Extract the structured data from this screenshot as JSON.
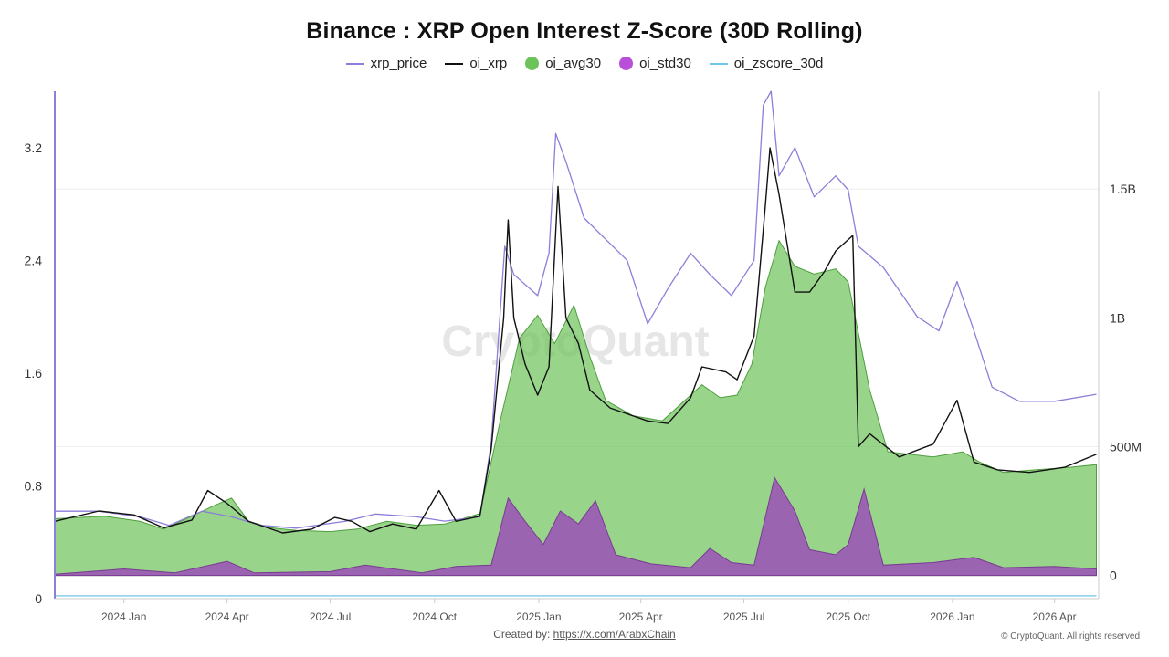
{
  "title": "Binance : XRP Open Interest Z-Score (30D Rolling)",
  "legend": [
    {
      "label": "xrp_price",
      "kind": "line",
      "color": "#8b7fd9"
    },
    {
      "label": "oi_xrp",
      "kind": "line",
      "color": "#111111"
    },
    {
      "label": "oi_avg30",
      "kind": "dot",
      "color": "#6cc35a"
    },
    {
      "label": "oi_std30",
      "kind": "dot",
      "color": "#b84fd8"
    },
    {
      "label": "oi_zscore_30d",
      "kind": "line",
      "color": "#6ec6e8"
    }
  ],
  "watermark": "CryptoQuant",
  "footer": {
    "created_by_label": "Created by:",
    "created_by_link": "https://x.com/ArabxChain",
    "copyright": "© CryptoQuant. All rights reserved"
  },
  "chart_data": {
    "type": "area",
    "x_ticks": [
      "2024 Jan",
      "2024 Apr",
      "2024 Jul",
      "2024 Oct",
      "2025 Jan",
      "2025 Apr",
      "2025 Jul",
      "2025 Oct",
      "2026 Jan",
      "2026 Apr"
    ],
    "x_range": [
      "2023-11-01",
      "2026-05-10"
    ],
    "left_axis": {
      "ticks": [
        "0",
        "0.8",
        "1.6",
        "2.4",
        "3.2"
      ],
      "values": [
        0,
        0.8,
        1.6,
        2.4,
        3.2
      ],
      "range": [
        0,
        3.6
      ]
    },
    "right_axis": {
      "ticks": [
        "0",
        "500M",
        "1B",
        "1.5B"
      ],
      "values": [
        0,
        500000000,
        1000000000,
        1500000000
      ],
      "range": [
        -90000000,
        1880000000
      ]
    },
    "grid": true,
    "legend_position": "top-center",
    "series": [
      {
        "name": "oi_avg30",
        "axis": "right",
        "style": "area",
        "color": "#6cc35a",
        "points": [
          [
            "2023-11-01",
            220000000
          ],
          [
            "2023-12-15",
            230000000
          ],
          [
            "2024-01-15",
            210000000
          ],
          [
            "2024-02-05",
            180000000
          ],
          [
            "2024-03-01",
            230000000
          ],
          [
            "2024-03-20",
            270000000
          ],
          [
            "2024-04-05",
            300000000
          ],
          [
            "2024-04-20",
            210000000
          ],
          [
            "2024-05-10",
            185000000
          ],
          [
            "2024-06-01",
            175000000
          ],
          [
            "2024-07-01",
            170000000
          ],
          [
            "2024-07-25",
            180000000
          ],
          [
            "2024-08-20",
            210000000
          ],
          [
            "2024-09-15",
            195000000
          ],
          [
            "2024-10-10",
            200000000
          ],
          [
            "2024-11-10",
            240000000
          ],
          [
            "2024-11-28",
            600000000
          ],
          [
            "2024-12-15",
            920000000
          ],
          [
            "2024-12-31",
            1010000000
          ],
          [
            "2025-01-15",
            900000000
          ],
          [
            "2025-02-01",
            1050000000
          ],
          [
            "2025-02-15",
            850000000
          ],
          [
            "2025-03-01",
            680000000
          ],
          [
            "2025-03-25",
            620000000
          ],
          [
            "2025-04-20",
            600000000
          ],
          [
            "2025-05-10",
            680000000
          ],
          [
            "2025-05-25",
            740000000
          ],
          [
            "2025-06-10",
            690000000
          ],
          [
            "2025-06-25",
            700000000
          ],
          [
            "2025-07-08",
            820000000
          ],
          [
            "2025-07-20",
            1120000000
          ],
          [
            "2025-08-01",
            1300000000
          ],
          [
            "2025-08-15",
            1200000000
          ],
          [
            "2025-09-01",
            1170000000
          ],
          [
            "2025-09-20",
            1190000000
          ],
          [
            "2025-10-01",
            1140000000
          ],
          [
            "2025-10-20",
            720000000
          ],
          [
            "2025-11-05",
            480000000
          ],
          [
            "2025-12-15",
            460000000
          ],
          [
            "2026-01-10",
            480000000
          ],
          [
            "2026-01-25",
            440000000
          ],
          [
            "2026-02-15",
            400000000
          ],
          [
            "2026-03-15",
            410000000
          ],
          [
            "2026-04-15",
            420000000
          ],
          [
            "2026-05-08",
            430000000
          ]
        ]
      },
      {
        "name": "oi_std30",
        "axis": "right",
        "style": "area",
        "color": "#9b58b5",
        "points": [
          [
            "2023-11-01",
            5000000
          ],
          [
            "2024-01-01",
            25000000
          ],
          [
            "2024-02-15",
            10000000
          ],
          [
            "2024-04-01",
            55000000
          ],
          [
            "2024-04-25",
            10000000
          ],
          [
            "2024-07-01",
            15000000
          ],
          [
            "2024-08-01",
            40000000
          ],
          [
            "2024-09-20",
            10000000
          ],
          [
            "2024-10-20",
            35000000
          ],
          [
            "2024-11-20",
            40000000
          ],
          [
            "2024-12-05",
            300000000
          ],
          [
            "2024-12-20",
            210000000
          ],
          [
            "2025-01-05",
            120000000
          ],
          [
            "2025-01-20",
            250000000
          ],
          [
            "2025-02-05",
            200000000
          ],
          [
            "2025-02-20",
            290000000
          ],
          [
            "2025-03-10",
            80000000
          ],
          [
            "2025-04-10",
            45000000
          ],
          [
            "2025-05-15",
            30000000
          ],
          [
            "2025-06-01",
            105000000
          ],
          [
            "2025-06-20",
            50000000
          ],
          [
            "2025-07-10",
            40000000
          ],
          [
            "2025-07-28",
            380000000
          ],
          [
            "2025-08-15",
            250000000
          ],
          [
            "2025-08-28",
            100000000
          ],
          [
            "2025-09-20",
            80000000
          ],
          [
            "2025-10-01",
            120000000
          ],
          [
            "2025-10-15",
            335000000
          ],
          [
            "2025-11-01",
            40000000
          ],
          [
            "2025-12-15",
            50000000
          ],
          [
            "2026-01-20",
            70000000
          ],
          [
            "2026-02-15",
            30000000
          ],
          [
            "2026-04-01",
            35000000
          ],
          [
            "2026-05-08",
            25000000
          ]
        ]
      },
      {
        "name": "oi_xrp",
        "axis": "right",
        "style": "line",
        "color": "#111111",
        "points": [
          [
            "2023-11-01",
            210000000
          ],
          [
            "2023-12-10",
            250000000
          ],
          [
            "2024-01-10",
            235000000
          ],
          [
            "2024-02-05",
            185000000
          ],
          [
            "2024-03-01",
            215000000
          ],
          [
            "2024-03-15",
            330000000
          ],
          [
            "2024-04-01",
            280000000
          ],
          [
            "2024-04-20",
            210000000
          ],
          [
            "2024-05-20",
            165000000
          ],
          [
            "2024-06-15",
            180000000
          ],
          [
            "2024-07-05",
            225000000
          ],
          [
            "2024-07-20",
            210000000
          ],
          [
            "2024-08-05",
            170000000
          ],
          [
            "2024-08-25",
            200000000
          ],
          [
            "2024-09-15",
            180000000
          ],
          [
            "2024-10-05",
            330000000
          ],
          [
            "2024-10-20",
            210000000
          ],
          [
            "2024-11-10",
            230000000
          ],
          [
            "2024-11-20",
            490000000
          ],
          [
            "2024-12-01",
            1000000000
          ],
          [
            "2024-12-05",
            1380000000
          ],
          [
            "2024-12-10",
            1000000000
          ],
          [
            "2024-12-20",
            820000000
          ],
          [
            "2024-12-31",
            700000000
          ],
          [
            "2025-01-10",
            810000000
          ],
          [
            "2025-01-18",
            1510000000
          ],
          [
            "2025-01-25",
            1000000000
          ],
          [
            "2025-02-05",
            900000000
          ],
          [
            "2025-02-15",
            720000000
          ],
          [
            "2025-03-05",
            650000000
          ],
          [
            "2025-04-07",
            600000000
          ],
          [
            "2025-04-25",
            590000000
          ],
          [
            "2025-05-15",
            690000000
          ],
          [
            "2025-05-25",
            810000000
          ],
          [
            "2025-06-15",
            790000000
          ],
          [
            "2025-06-25",
            760000000
          ],
          [
            "2025-07-10",
            930000000
          ],
          [
            "2025-07-20",
            1440000000
          ],
          [
            "2025-07-24",
            1660000000
          ],
          [
            "2025-08-01",
            1480000000
          ],
          [
            "2025-08-15",
            1100000000
          ],
          [
            "2025-08-28",
            1100000000
          ],
          [
            "2025-09-10",
            1180000000
          ],
          [
            "2025-09-20",
            1260000000
          ],
          [
            "2025-10-05",
            1320000000
          ],
          [
            "2025-10-10",
            500000000
          ],
          [
            "2025-10-20",
            550000000
          ],
          [
            "2025-11-15",
            460000000
          ],
          [
            "2025-12-15",
            510000000
          ],
          [
            "2026-01-05",
            680000000
          ],
          [
            "2026-01-20",
            440000000
          ],
          [
            "2026-02-10",
            410000000
          ],
          [
            "2026-03-10",
            400000000
          ],
          [
            "2026-04-10",
            420000000
          ],
          [
            "2026-05-08",
            470000000
          ]
        ]
      },
      {
        "name": "xrp_price",
        "axis": "left",
        "style": "line",
        "color": "#8b7fd9",
        "points": [
          [
            "2023-11-01",
            0.62
          ],
          [
            "2023-12-10",
            0.62
          ],
          [
            "2024-01-15",
            0.58
          ],
          [
            "2024-02-10",
            0.52
          ],
          [
            "2024-03-10",
            0.62
          ],
          [
            "2024-04-05",
            0.58
          ],
          [
            "2024-05-01",
            0.52
          ],
          [
            "2024-06-01",
            0.5
          ],
          [
            "2024-07-15",
            0.55
          ],
          [
            "2024-08-10",
            0.6
          ],
          [
            "2024-09-15",
            0.58
          ],
          [
            "2024-10-10",
            0.55
          ],
          [
            "2024-11-10",
            0.58
          ],
          [
            "2024-11-20",
            1.1
          ],
          [
            "2024-12-02",
            2.5
          ],
          [
            "2024-12-10",
            2.3
          ],
          [
            "2024-12-31",
            2.15
          ],
          [
            "2025-01-10",
            2.45
          ],
          [
            "2025-01-16",
            3.3
          ],
          [
            "2025-01-25",
            3.1
          ],
          [
            "2025-02-10",
            2.7
          ],
          [
            "2025-03-01",
            2.55
          ],
          [
            "2025-03-20",
            2.4
          ],
          [
            "2025-04-07",
            1.95
          ],
          [
            "2025-04-25",
            2.2
          ],
          [
            "2025-05-15",
            2.45
          ],
          [
            "2025-06-01",
            2.3
          ],
          [
            "2025-06-20",
            2.15
          ],
          [
            "2025-07-10",
            2.4
          ],
          [
            "2025-07-18",
            3.5
          ],
          [
            "2025-07-25",
            3.6
          ],
          [
            "2025-08-01",
            3.0
          ],
          [
            "2025-08-15",
            3.2
          ],
          [
            "2025-09-01",
            2.85
          ],
          [
            "2025-09-20",
            3.0
          ],
          [
            "2025-10-01",
            2.9
          ],
          [
            "2025-10-10",
            2.5
          ],
          [
            "2025-11-01",
            2.35
          ],
          [
            "2025-12-01",
            2.0
          ],
          [
            "2025-12-20",
            1.9
          ],
          [
            "2026-01-05",
            2.25
          ],
          [
            "2026-01-20",
            1.9
          ],
          [
            "2026-02-05",
            1.5
          ],
          [
            "2026-03-01",
            1.4
          ],
          [
            "2026-04-01",
            1.4
          ],
          [
            "2026-05-08",
            1.45
          ]
        ]
      },
      {
        "name": "oi_zscore_30d",
        "axis": "left",
        "style": "line",
        "color": "#6ec6e8",
        "points": [
          [
            "2023-11-01",
            0.02
          ],
          [
            "2026-05-08",
            0.02
          ]
        ]
      }
    ]
  }
}
